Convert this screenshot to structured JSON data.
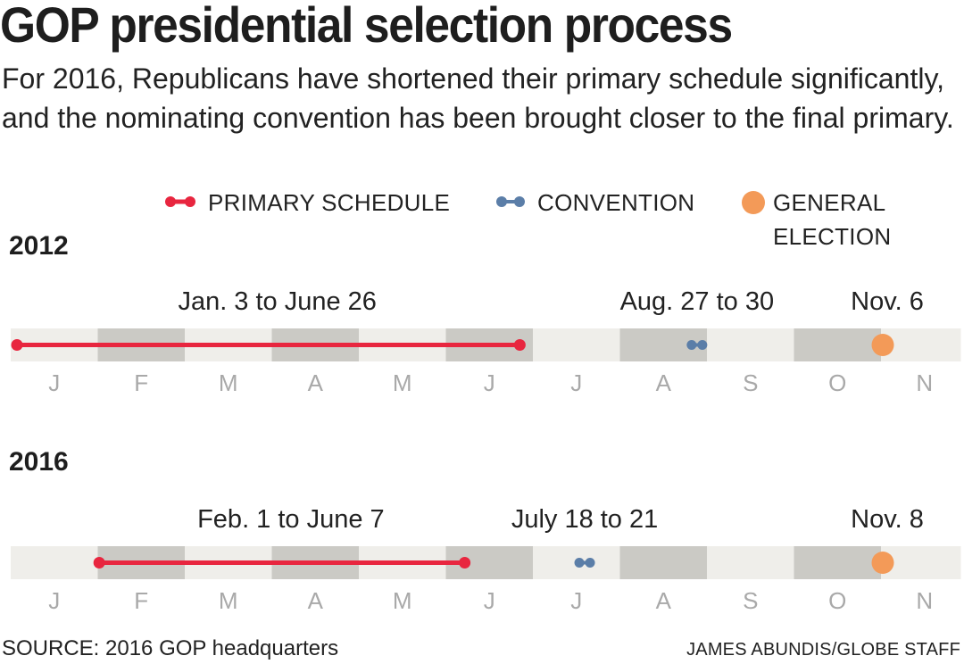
{
  "title": "GOP presidential selection process",
  "subtitle": "For 2016, Republicans have shortened their primary schedule significantly, and the nominating convention has been brought closer to the final primary.",
  "legend": {
    "primary_label": "PRIMARY SCHEDULE",
    "convention_label": "CONVENTION",
    "general_label_line1": "GENERAL",
    "general_label_line2": "ELECTION"
  },
  "colors": {
    "primary": "#e8263f",
    "convention": "#5b7ea8",
    "general": "#f39a58",
    "band_light": "#efeeea",
    "band_dark": "#cbcac5",
    "month_text": "#a9a9a9"
  },
  "chart_data": {
    "type": "timeline",
    "months": [
      "J",
      "F",
      "M",
      "A",
      "M",
      "J",
      "J",
      "A",
      "S",
      "O",
      "N"
    ],
    "panels": [
      {
        "year": "2012",
        "primary": {
          "start": "Jan 3",
          "end": "June 26",
          "label": "Jan. 3 to June 26",
          "start_month": 1,
          "start_day": 3,
          "end_month": 6,
          "end_day": 26
        },
        "convention": {
          "start": "Aug 27",
          "end": "Aug 30",
          "label": "Aug. 27 to 30",
          "start_month": 8,
          "start_day": 27,
          "end_month": 8,
          "end_day": 30
        },
        "general": {
          "date": "Nov 6",
          "label": "Nov. 6",
          "month": 11,
          "day": 6
        }
      },
      {
        "year": "2016",
        "primary": {
          "start": "Feb 1",
          "end": "June 7",
          "label": "Feb. 1 to June 7",
          "start_month": 2,
          "start_day": 1,
          "end_month": 6,
          "end_day": 7
        },
        "convention": {
          "start": "July 18",
          "end": "July 21",
          "label": "July 18 to 21",
          "start_month": 7,
          "start_day": 18,
          "end_month": 7,
          "end_day": 21
        },
        "general": {
          "date": "Nov 8",
          "label": "Nov. 8",
          "month": 11,
          "day": 8
        }
      }
    ]
  },
  "footer": {
    "source": "SOURCE: 2016 GOP headquarters",
    "credit": "JAMES ABUNDIS/GLOBE STAFF"
  }
}
